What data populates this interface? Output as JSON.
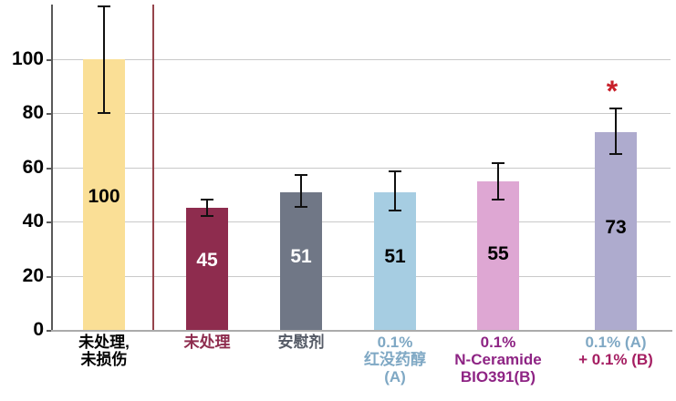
{
  "chart_data": {
    "type": "bar",
    "title": "",
    "xlabel": "",
    "ylabel": "",
    "ylim": [
      0,
      120
    ],
    "yticks": [
      0,
      20,
      40,
      60,
      80,
      100
    ],
    "grid": true,
    "legend": "none",
    "categories": [
      "未处理, 未损伤",
      "未处理",
      "安慰剂",
      "0.1% 红没药醇 (A)",
      "0.1% N-Ceramide BIO391(B)",
      "0.1% (A) + 0.1% (B)"
    ],
    "values": [
      100,
      45,
      51,
      51,
      55,
      73
    ],
    "bars": [
      {
        "value": 100,
        "value_text": "100",
        "label_lines": [
          "未处理,",
          "未损伤"
        ],
        "label_colors": [
          "#000000",
          "#000000"
        ],
        "error_low": 80,
        "error_high": 120,
        "fill": "#FADF96",
        "value_color": "#000000",
        "significance": ""
      },
      {
        "value": 45,
        "value_text": "45",
        "label_lines": [
          "未处理"
        ],
        "label_colors": [
          "#8E2C4E"
        ],
        "error_low": 42,
        "error_high": 48.5,
        "fill": "#8E2C4E",
        "value_color": "#FFFFFF",
        "significance": ""
      },
      {
        "value": 51,
        "value_text": "51",
        "label_lines": [
          "安慰剂"
        ],
        "label_colors": [
          "#555B66"
        ],
        "error_low": 45.5,
        "error_high": 57.5,
        "fill": "#707786",
        "value_color": "#FFFFFF",
        "significance": ""
      },
      {
        "value": 51,
        "value_text": "51",
        "label_lines": [
          "0.1%",
          "红没药醇",
          "(A)"
        ],
        "label_colors": [
          "#7FA8C4",
          "#7FA8C4",
          "#7FA8C4"
        ],
        "error_low": 44,
        "error_high": 59,
        "fill": "#A6CDE2",
        "value_color": "#000000",
        "significance": ""
      },
      {
        "value": 55,
        "value_text": "55",
        "label_lines": [
          "0.1%",
          "N-Ceramide",
          "BIO391(B)"
        ],
        "label_colors": [
          "#8E2484",
          "#8E2484",
          "#8E2484"
        ],
        "error_low": 48,
        "error_high": 62,
        "fill": "#DEA7D3",
        "value_color": "#000000",
        "significance": ""
      },
      {
        "value": 73,
        "value_text": "73",
        "label_lines": [
          "0.1% (A)",
          "+ 0.1% (B)"
        ],
        "label_colors": [
          "#7FA8C4",
          "#A51E62"
        ],
        "error_low": 65,
        "error_high": 82,
        "fill": "#AEABCE",
        "value_color": "#000000",
        "significance": "*"
      }
    ],
    "significance_color": "#C8202A",
    "separator_color": "#96444C",
    "gridline_color": "#C9C9C9",
    "baseline_color": "#ABABAB",
    "yaxis_color": "#595959",
    "error_bar_color": "#111111",
    "tick_label_color": "#000000",
    "background_color": "#FFFFFF"
  }
}
